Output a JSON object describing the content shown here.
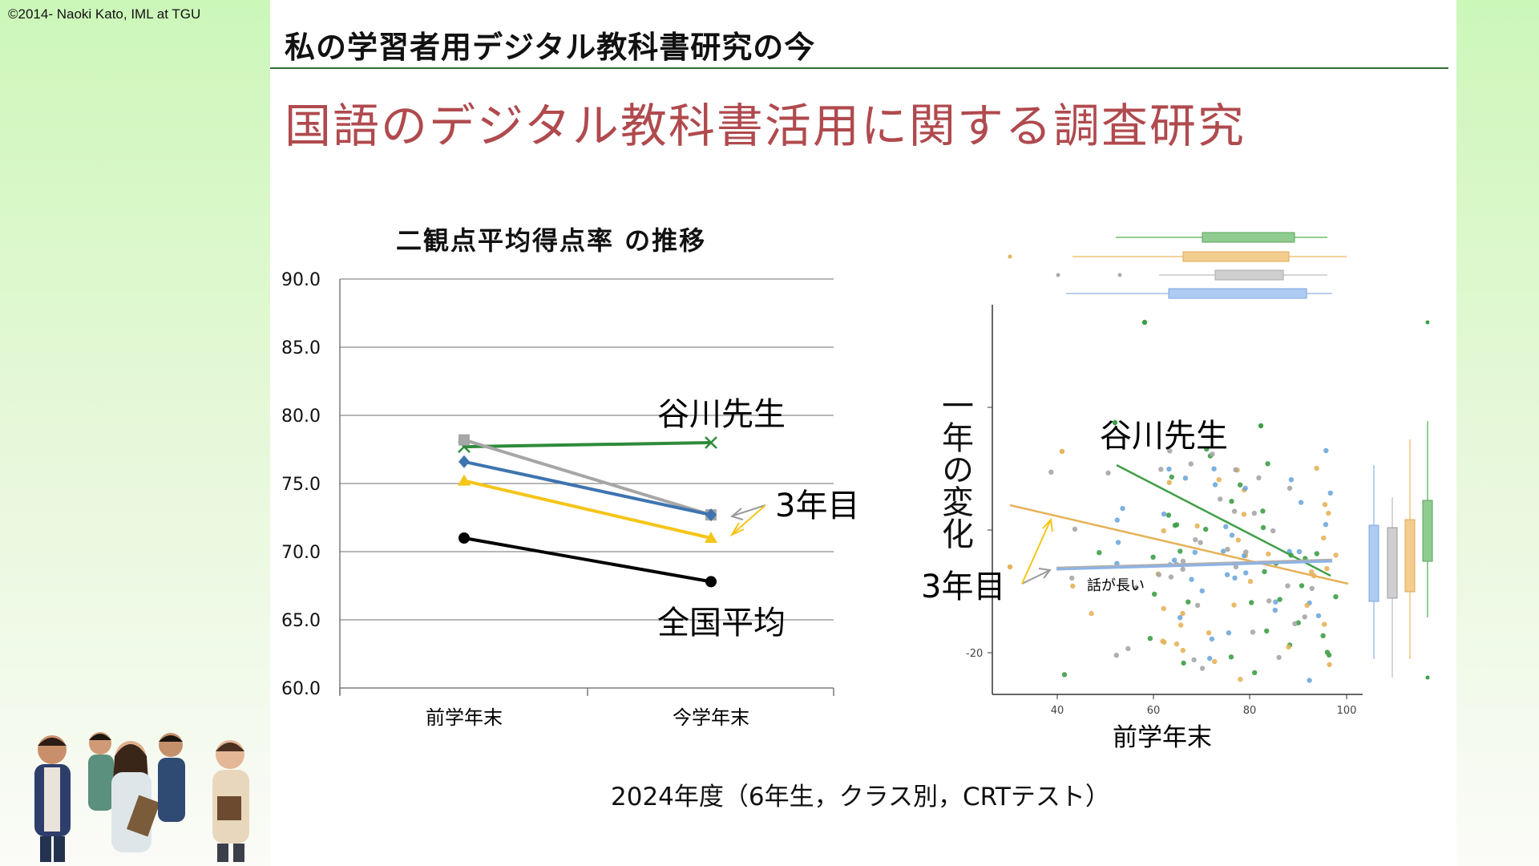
{
  "copyright": "©2014- Naoki Kato, IML at TGU",
  "header": {
    "title": "私の学習者用デジタル教科書研究の今"
  },
  "main_title": "国語のデジタル教科書活用に関する調査研究",
  "footer_note": "2024年度（6年生，クラス別，CRTテスト）",
  "colors": {
    "accent_title": "#b04a4e",
    "header_rule": "#2f6d33"
  },
  "chart_data": [
    {
      "type": "line",
      "title": "二観点平均得点率 の推移",
      "categories": [
        "前学年末",
        "今学年末"
      ],
      "y_ticks": [
        "90.0",
        "85.0",
        "80.0",
        "75.0",
        "70.0",
        "65.0",
        "60.0"
      ],
      "ylim": [
        60,
        90
      ],
      "grid": true,
      "series": [
        {
          "name": "谷川先生",
          "values": [
            77.7,
            78.0
          ],
          "color": "#2e8b3a",
          "marker": "x"
        },
        {
          "name": "",
          "values": [
            78.2,
            72.7
          ],
          "color": "#a6a6a6",
          "marker": "square"
        },
        {
          "name": "",
          "values": [
            76.6,
            72.7
          ],
          "color": "#3e74b0",
          "marker": "diamond"
        },
        {
          "name": "",
          "values": [
            75.2,
            71.0
          ],
          "color": "#f5c518",
          "marker": "triangle"
        },
        {
          "name": "全国平均",
          "values": [
            71.0,
            67.8
          ],
          "color": "#000000",
          "marker": "circle"
        }
      ],
      "annotations": [
        "谷川先生",
        "3年目",
        "全国平均"
      ]
    },
    {
      "type": "scatter",
      "xlabel": "前学年末",
      "ylabel": "一年の変化",
      "x_ticks": [
        "40",
        "60",
        "80",
        "100"
      ],
      "y_ticks": [
        "-20"
      ],
      "annotations": [
        "谷川先生",
        "3年目",
        "話が長い"
      ],
      "group_colors": [
        "#6fa8dc",
        "#a6a6a6",
        "#e6b25a",
        "#3f9e48"
      ]
    }
  ]
}
